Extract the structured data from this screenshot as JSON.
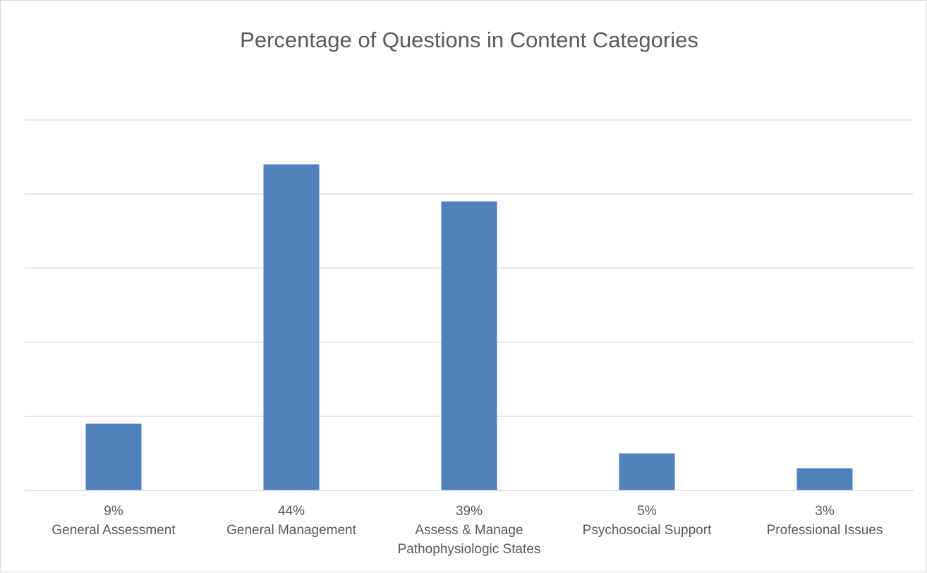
{
  "chart_data": {
    "type": "bar",
    "title": "Percentage of Questions in Content Categories",
    "categories": [
      [
        "9%",
        "General Assessment"
      ],
      [
        "44%",
        "General Management"
      ],
      [
        "39%",
        "Assess & Manage",
        "Pathophysiologic States"
      ],
      [
        "5%",
        "Psychosocial Support"
      ],
      [
        "3%",
        "Professional Issues"
      ]
    ],
    "values": [
      9,
      44,
      39,
      5,
      3
    ],
    "ylim": [
      0,
      50
    ],
    "gridlines": true,
    "y_tick_labels_shown": false,
    "legend": "none",
    "bar_color": "#4f81bd"
  }
}
